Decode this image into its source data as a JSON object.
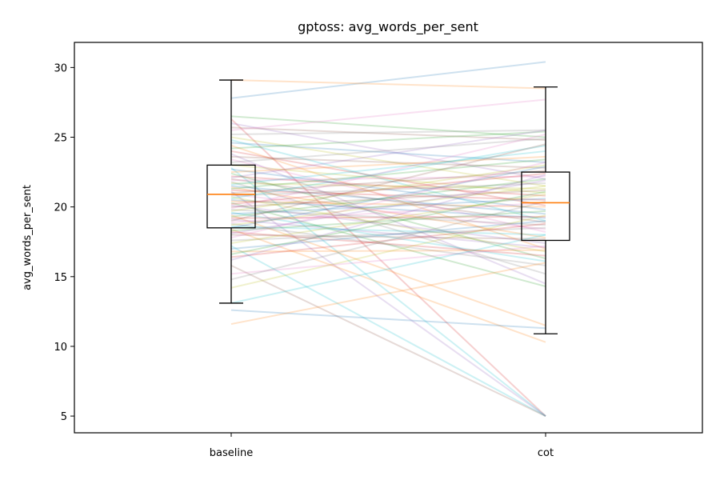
{
  "chart_data": {
    "type": "boxplot",
    "title": "gptoss: avg_words_per_sent",
    "xlabel": "",
    "ylabel": "avg_words_per_sent",
    "categories": [
      "baseline",
      "cot"
    ],
    "ylim": [
      3.8,
      31.8
    ],
    "yticks": [
      5,
      10,
      15,
      20,
      25,
      30
    ],
    "grid": false,
    "boxes": [
      {
        "name": "baseline",
        "whisker_low": 13.1,
        "q1": 18.5,
        "median": 20.9,
        "q3": 23.0,
        "whisker_high": 29.1
      },
      {
        "name": "cot",
        "whisker_low": 10.9,
        "q1": 17.6,
        "median": 20.3,
        "q3": 22.5,
        "whisker_high": 28.6
      }
    ],
    "pairs": [
      [
        27.8,
        30.4
      ],
      [
        29.1,
        28.5
      ],
      [
        26.5,
        25.0
      ],
      [
        26.3,
        5.0
      ],
      [
        26.0,
        22.0
      ],
      [
        25.7,
        24.8
      ],
      [
        25.5,
        27.7
      ],
      [
        25.2,
        25.5
      ],
      [
        25.0,
        21.5
      ],
      [
        24.8,
        19.0
      ],
      [
        24.6,
        23.2
      ],
      [
        24.4,
        17.0
      ],
      [
        24.2,
        25.4
      ],
      [
        24.0,
        20.1
      ],
      [
        23.8,
        14.5
      ],
      [
        23.6,
        22.8
      ],
      [
        23.4,
        18.2
      ],
      [
        23.2,
        24.9
      ],
      [
        23.0,
        21.0
      ],
      [
        22.8,
        5.0
      ],
      [
        22.7,
        19.8
      ],
      [
        22.5,
        23.6
      ],
      [
        22.4,
        16.3
      ],
      [
        22.2,
        20.8
      ],
      [
        22.1,
        25.5
      ],
      [
        22.0,
        18.9
      ],
      [
        21.9,
        22.2
      ],
      [
        21.8,
        15.2
      ],
      [
        21.7,
        21.3
      ],
      [
        21.6,
        24.0
      ],
      [
        21.5,
        19.5
      ],
      [
        21.4,
        17.8
      ],
      [
        21.3,
        23.4
      ],
      [
        21.2,
        20.5
      ],
      [
        21.1,
        5.0
      ],
      [
        21.0,
        22.6
      ],
      [
        20.9,
        18.4
      ],
      [
        20.8,
        21.7
      ],
      [
        20.7,
        16.8
      ],
      [
        20.6,
        24.4
      ],
      [
        20.5,
        19.2
      ],
      [
        20.4,
        20.0
      ],
      [
        20.3,
        14.3
      ],
      [
        20.2,
        22.4
      ],
      [
        20.1,
        17.4
      ],
      [
        20.0,
        21.2
      ],
      [
        19.9,
        25.2
      ],
      [
        19.8,
        18.7
      ],
      [
        19.7,
        23.0
      ],
      [
        19.6,
        16.1
      ],
      [
        19.5,
        20.6
      ],
      [
        19.4,
        11.5
      ],
      [
        19.3,
        22.0
      ],
      [
        19.2,
        19.3
      ],
      [
        19.1,
        17.1
      ],
      [
        19.0,
        24.5
      ],
      [
        18.9,
        20.3
      ],
      [
        18.8,
        15.8
      ],
      [
        18.7,
        21.5
      ],
      [
        18.6,
        18.0
      ],
      [
        18.5,
        22.9
      ],
      [
        18.4,
        10.3
      ],
      [
        18.3,
        19.7
      ],
      [
        18.2,
        16.5
      ],
      [
        18.1,
        21.9
      ],
      [
        18.0,
        17.7
      ],
      [
        17.8,
        23.2
      ],
      [
        17.6,
        18.5
      ],
      [
        17.4,
        20.9
      ],
      [
        17.2,
        5.0
      ],
      [
        17.0,
        19.0
      ],
      [
        16.8,
        16.9
      ],
      [
        16.6,
        21.1
      ],
      [
        16.4,
        18.8
      ],
      [
        16.2,
        22.3
      ],
      [
        15.8,
        5.0
      ],
      [
        15.2,
        17.2
      ],
      [
        14.8,
        20.4
      ],
      [
        14.2,
        19.4
      ],
      [
        13.1,
        18.0
      ],
      [
        12.6,
        11.3
      ],
      [
        11.6,
        16.0
      ]
    ]
  }
}
